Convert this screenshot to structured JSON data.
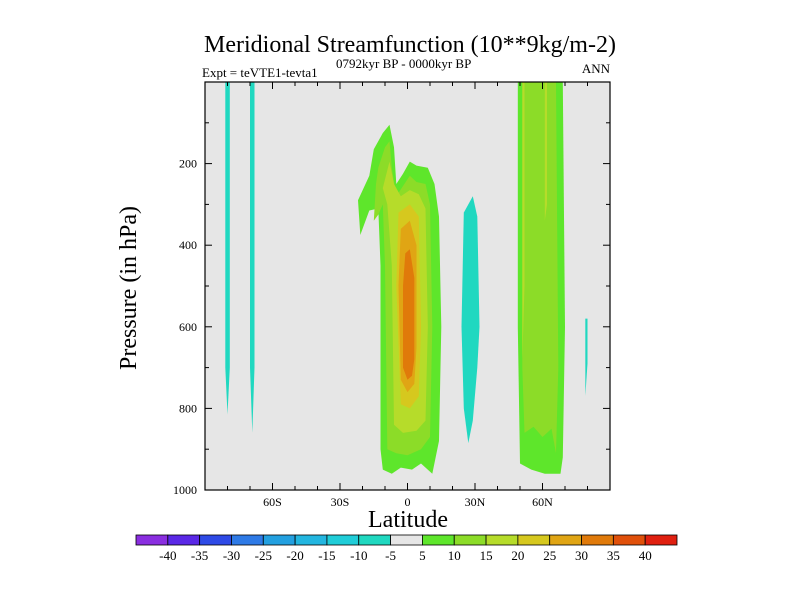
{
  "chart_data": {
    "type": "filled-contour",
    "title": "Meridional Streamfunction (10**9kg/m-2)",
    "left_label": "Expt = teVTE1-tevta1",
    "center_label": "0792kyr BP - 0000kyr BP",
    "right_label": "ANN",
    "xlabel": "Latitude",
    "ylabel": "Pressure (in hPa)",
    "xlim": [
      -90,
      90
    ],
    "ylim": [
      0,
      1000
    ],
    "y_inverted": true,
    "x_ticks": [
      {
        "value": -60,
        "label": "60S"
      },
      {
        "value": -30,
        "label": "30S"
      },
      {
        "value": 0,
        "label": "0"
      },
      {
        "value": 30,
        "label": "30N"
      },
      {
        "value": 60,
        "label": "60N"
      }
    ],
    "y_ticks": [
      {
        "value": 200,
        "label": "200"
      },
      {
        "value": 400,
        "label": "400"
      },
      {
        "value": 600,
        "label": "600"
      },
      {
        "value": 800,
        "label": "800"
      },
      {
        "value": 1000,
        "label": "1000"
      }
    ],
    "zero_fill_color": "#e6e6e6",
    "colorbar": {
      "levels": [
        "-40",
        "-35",
        "-30",
        "-25",
        "-20",
        "-15",
        "-10",
        "-5",
        "5",
        "10",
        "15",
        "20",
        "25",
        "30",
        "35",
        "40"
      ],
      "colors": [
        "#8a2ee0",
        "#5a28e6",
        "#2e4ae6",
        "#2e7ae6",
        "#23a0e0",
        "#23b6e0",
        "#20cdd8",
        "#20d8c0",
        "#e6e6e6",
        "#5ee62b",
        "#8cdc28",
        "#b6dc2a",
        "#d6c81e",
        "#e0a514",
        "#e07a0a",
        "#e0500a",
        "#e02010"
      ]
    },
    "series": [
      {
        "name": "-5 band near 80S",
        "level": -5,
        "points": [
          [
            -81,
            0
          ],
          [
            -79,
            0
          ],
          [
            -79,
            700
          ],
          [
            -80,
            815
          ],
          [
            -81,
            700
          ]
        ]
      },
      {
        "name": "-5 band near 70S",
        "level": -5,
        "points": [
          [
            -70,
            0
          ],
          [
            -68,
            0
          ],
          [
            -68,
            700
          ],
          [
            -69,
            860
          ],
          [
            -70,
            700
          ]
        ]
      },
      {
        "name": "-5 cell near 25N",
        "level": -5,
        "points": [
          [
            25,
            320
          ],
          [
            29,
            280
          ],
          [
            31,
            330
          ],
          [
            32,
            600
          ],
          [
            31,
            700
          ],
          [
            29,
            830
          ],
          [
            27,
            885
          ],
          [
            25,
            800
          ],
          [
            24,
            600
          ]
        ]
      },
      {
        "name": "-5 sliver near 80N",
        "level": -5,
        "points": [
          [
            79,
            580
          ],
          [
            80,
            580
          ],
          [
            80,
            690
          ],
          [
            79,
            770
          ],
          [
            79,
            690
          ]
        ]
      },
      {
        "name": "+5 plume near equator",
        "level": 5,
        "points": [
          [
            -17,
            230
          ],
          [
            -15,
            165
          ],
          [
            -11,
            125
          ],
          [
            -8,
            105
          ],
          [
            -6,
            160
          ],
          [
            -5,
            250
          ],
          [
            -2,
            225
          ],
          [
            1,
            195
          ],
          [
            4,
            205
          ],
          [
            9,
            210
          ],
          [
            12,
            250
          ],
          [
            14,
            330
          ],
          [
            15,
            600
          ],
          [
            14,
            880
          ],
          [
            11,
            960
          ],
          [
            6,
            935
          ],
          [
            2,
            950
          ],
          [
            -3,
            945
          ],
          [
            -7,
            960
          ],
          [
            -11,
            950
          ],
          [
            -12,
            900
          ],
          [
            -12,
            450
          ],
          [
            -13,
            310
          ],
          [
            -17,
            315
          ],
          [
            -19,
            345
          ],
          [
            -21,
            375
          ],
          [
            -22,
            290
          ]
        ]
      },
      {
        "name": "+10 plume near equator",
        "level": 10,
        "points": [
          [
            -14,
            250
          ],
          [
            -13,
            210
          ],
          [
            -10,
            160
          ],
          [
            -8,
            145
          ],
          [
            -7,
            210
          ],
          [
            -5,
            280
          ],
          [
            -2,
            255
          ],
          [
            1,
            230
          ],
          [
            4,
            245
          ],
          [
            8,
            250
          ],
          [
            10,
            300
          ],
          [
            11,
            600
          ],
          [
            10,
            870
          ],
          [
            6,
            900
          ],
          [
            0,
            915
          ],
          [
            -5,
            910
          ],
          [
            -9,
            900
          ],
          [
            -10,
            450
          ],
          [
            -11,
            300
          ],
          [
            -13,
            325
          ],
          [
            -15,
            340
          ]
        ]
      },
      {
        "name": "+15 plume near equator",
        "level": 15,
        "points": [
          [
            -11,
            260
          ],
          [
            -8,
            195
          ],
          [
            -6,
            250
          ],
          [
            -3,
            280
          ],
          [
            1,
            265
          ],
          [
            5,
            275
          ],
          [
            8,
            310
          ],
          [
            9,
            600
          ],
          [
            8,
            830
          ],
          [
            4,
            855
          ],
          [
            -2,
            860
          ],
          [
            -6,
            840
          ],
          [
            -7,
            450
          ],
          [
            -9,
            300
          ]
        ]
      },
      {
        "name": "+20 core near equator",
        "level": 20,
        "points": [
          [
            -4,
            320
          ],
          [
            1,
            300
          ],
          [
            5,
            330
          ],
          [
            6,
            600
          ],
          [
            5,
            770
          ],
          [
            1,
            800
          ],
          [
            -3,
            790
          ],
          [
            -5,
            500
          ]
        ]
      },
      {
        "name": "+25 core near equator",
        "level": 25,
        "points": [
          [
            -3,
            360
          ],
          [
            1,
            340
          ],
          [
            4,
            400
          ],
          [
            4,
            650
          ],
          [
            3,
            740
          ],
          [
            0,
            760
          ],
          [
            -3,
            730
          ],
          [
            -4,
            500
          ]
        ]
      },
      {
        "name": "+30 core near equator",
        "level": 30,
        "points": [
          [
            -1,
            420
          ],
          [
            1,
            410
          ],
          [
            3,
            480
          ],
          [
            3,
            680
          ],
          [
            2,
            720
          ],
          [
            0,
            730
          ],
          [
            -2,
            700
          ],
          [
            -2,
            500
          ]
        ]
      },
      {
        "name": "+5 band near 55N",
        "level": 5,
        "points": [
          [
            49,
            0
          ],
          [
            69,
            0
          ],
          [
            70,
            600
          ],
          [
            69,
            920
          ],
          [
            68,
            960
          ],
          [
            61,
            960
          ],
          [
            55,
            950
          ],
          [
            50,
            935
          ],
          [
            49,
            600
          ]
        ]
      },
      {
        "name": "+10 band near 55N",
        "level": 10,
        "points": [
          [
            51,
            0
          ],
          [
            66,
            0
          ],
          [
            67,
            700
          ],
          [
            66,
            910
          ],
          [
            64,
            850
          ],
          [
            60,
            870
          ],
          [
            56,
            845
          ],
          [
            52,
            860
          ],
          [
            51,
            700
          ]
        ]
      },
      {
        "name": "+15 stripe near 50N",
        "level": 15,
        "points": [
          [
            51,
            0
          ],
          [
            52,
            0
          ],
          [
            52,
            500
          ],
          [
            51,
            680
          ]
        ]
      },
      {
        "name": "+15 stripe near 62N",
        "level": 15,
        "points": [
          [
            61,
            0
          ],
          [
            62,
            0
          ],
          [
            62,
            300
          ],
          [
            61,
            340
          ]
        ]
      }
    ]
  }
}
